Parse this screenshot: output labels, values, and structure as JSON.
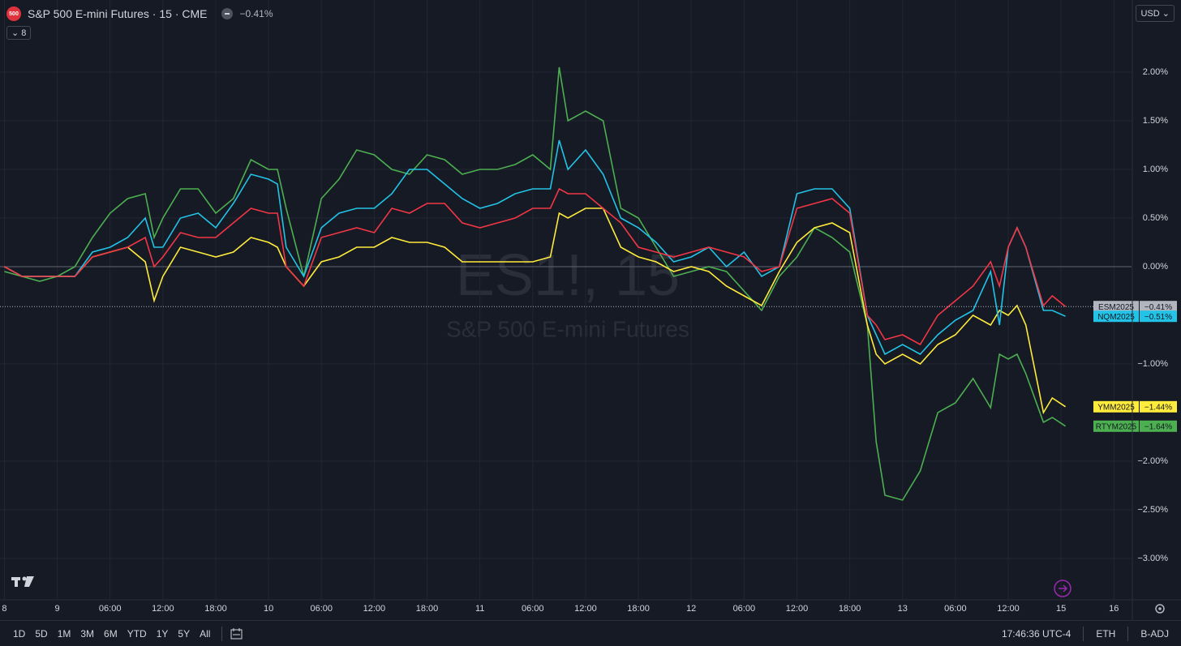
{
  "chart_data": {
    "type": "line",
    "symbol_title": "S&P 500 E-mini Futures · 15 · CME",
    "logo": "500",
    "header_change": "−0.41%",
    "indicator_count": "8",
    "currency": "USD",
    "watermark_symbol": "ES1!, 15",
    "watermark_name": "S&P 500 E-mini Futures",
    "timeframes": [
      "1D",
      "5D",
      "1M",
      "3M",
      "6M",
      "YTD",
      "1Y",
      "5Y",
      "All"
    ],
    "clock": "17:46:36 UTC-4",
    "session": "ETH",
    "adjustment": "B-ADJ",
    "grid": true,
    "xlim": [
      -0.5,
      128
    ],
    "ylim": [
      -3.425,
      2.742
    ],
    "xticks": [
      {
        "value": 0,
        "label": "8"
      },
      {
        "value": 6,
        "label": "9"
      },
      {
        "value": 12,
        "label": "06:00"
      },
      {
        "value": 18,
        "label": "12:00"
      },
      {
        "value": 24,
        "label": "18:00"
      },
      {
        "value": 30,
        "label": "10"
      },
      {
        "value": 36,
        "label": "06:00"
      },
      {
        "value": 42,
        "label": "12:00"
      },
      {
        "value": 48,
        "label": "18:00"
      },
      {
        "value": 54,
        "label": "11"
      },
      {
        "value": 60,
        "label": "06:00"
      },
      {
        "value": 66,
        "label": "12:00"
      },
      {
        "value": 72,
        "label": "18:00"
      },
      {
        "value": 78,
        "label": "12"
      },
      {
        "value": 84,
        "label": "06:00"
      },
      {
        "value": 90,
        "label": "12:00"
      },
      {
        "value": 96,
        "label": "18:00"
      },
      {
        "value": 102,
        "label": "13"
      },
      {
        "value": 108,
        "label": "06:00"
      },
      {
        "value": 114,
        "label": "12:00"
      },
      {
        "value": 120,
        "label": "15"
      },
      {
        "value": 126,
        "label": "16"
      }
    ],
    "yticks": [
      {
        "value": 2,
        "label": "2.00%"
      },
      {
        "value": 1.5,
        "label": "1.50%"
      },
      {
        "value": 1,
        "label": "1.00%"
      },
      {
        "value": 0.5,
        "label": "0.50%"
      },
      {
        "value": 0,
        "label": "0.00%"
      },
      {
        "value": -1,
        "label": "−1.00%"
      },
      {
        "value": -2,
        "label": "−2.00%"
      },
      {
        "value": -2.5,
        "label": "−2.50%"
      },
      {
        "value": -3,
        "label": "−3.00%"
      }
    ],
    "x": [
      0,
      2,
      4,
      6,
      8,
      10,
      12,
      14,
      16,
      17,
      18,
      20,
      22,
      24,
      26,
      28,
      30,
      31,
      32,
      34,
      36,
      38,
      40,
      42,
      44,
      46,
      48,
      50,
      52,
      54,
      56,
      58,
      60,
      62,
      63,
      64,
      66,
      68,
      70,
      72,
      74,
      76,
      78,
      80,
      82,
      84,
      86,
      88,
      90,
      92,
      94,
      96,
      98,
      99,
      100,
      102,
      104,
      106,
      108,
      110,
      112,
      113,
      114,
      115,
      116,
      118,
      119,
      120.5
    ],
    "series": [
      {
        "name": "ESM2025",
        "color": "#f23645",
        "badge_color": "#b2b5be",
        "last_label": "−0.41%",
        "values": [
          0,
          -0.1,
          -0.1,
          -0.1,
          -0.1,
          0.1,
          0.15,
          0.2,
          0.3,
          0,
          0.1,
          0.35,
          0.3,
          0.3,
          0.45,
          0.6,
          0.55,
          0.55,
          0,
          -0.2,
          0.3,
          0.35,
          0.4,
          0.35,
          0.6,
          0.55,
          0.65,
          0.65,
          0.45,
          0.4,
          0.45,
          0.5,
          0.6,
          0.6,
          0.8,
          0.75,
          0.75,
          0.6,
          0.45,
          0.2,
          0.15,
          0.1,
          0.15,
          0.2,
          0.15,
          0.1,
          -0.05,
          0,
          0.6,
          0.65,
          0.7,
          0.55,
          -0.5,
          -0.6,
          -0.75,
          -0.7,
          -0.8,
          -0.5,
          -0.35,
          -0.2,
          0.05,
          -0.2,
          0.2,
          0.4,
          0.2,
          -0.4,
          -0.3,
          -0.41
        ]
      },
      {
        "name": "NQM2025",
        "color": "#22c3e6",
        "badge_color": "#22c3e6",
        "last_label": "−0.51%",
        "values": [
          0,
          -0.1,
          -0.1,
          -0.1,
          -0.1,
          0.15,
          0.2,
          0.3,
          0.5,
          0.2,
          0.2,
          0.5,
          0.55,
          0.4,
          0.65,
          0.95,
          0.9,
          0.85,
          0.2,
          -0.1,
          0.4,
          0.55,
          0.6,
          0.6,
          0.75,
          1.0,
          1.0,
          0.85,
          0.7,
          0.6,
          0.65,
          0.75,
          0.8,
          0.8,
          1.3,
          1.0,
          1.2,
          0.95,
          0.5,
          0.4,
          0.25,
          0.05,
          0.1,
          0.2,
          0.0,
          0.15,
          -0.1,
          0.0,
          0.75,
          0.8,
          0.8,
          0.6,
          -0.5,
          -0.7,
          -0.9,
          -0.8,
          -0.9,
          -0.7,
          -0.55,
          -0.45,
          -0.05,
          -0.6,
          0.2,
          0.4,
          0.2,
          -0.45,
          -0.45,
          -0.51
        ]
      },
      {
        "name": "YMM2025",
        "color": "#ffeb3b",
        "badge_color": "#ffeb3b",
        "last_label": "−1.44%",
        "values": [
          0,
          -0.1,
          -0.1,
          -0.1,
          -0.1,
          0.1,
          0.15,
          0.2,
          0.05,
          -0.35,
          -0.1,
          0.2,
          0.15,
          0.1,
          0.15,
          0.3,
          0.25,
          0.2,
          0.0,
          -0.2,
          0.05,
          0.1,
          0.2,
          0.2,
          0.3,
          0.25,
          0.25,
          0.2,
          0.05,
          0.05,
          0.05,
          0.05,
          0.05,
          0.1,
          0.55,
          0.5,
          0.6,
          0.6,
          0.2,
          0.1,
          0.05,
          -0.05,
          0.0,
          -0.05,
          -0.2,
          -0.3,
          -0.4,
          -0.05,
          0.25,
          0.4,
          0.45,
          0.35,
          -0.6,
          -0.9,
          -1.0,
          -0.9,
          -1.0,
          -0.8,
          -0.7,
          -0.5,
          -0.6,
          -0.45,
          -0.5,
          -0.4,
          -0.6,
          -1.5,
          -1.35,
          -1.44
        ]
      },
      {
        "name": "RTYM2025",
        "color": "#4caf50",
        "badge_color": "#4caf50",
        "last_label": "−1.64%",
        "values": [
          -0.05,
          -0.1,
          -0.15,
          -0.1,
          0.0,
          0.3,
          0.55,
          0.7,
          0.75,
          0.3,
          0.5,
          0.8,
          0.8,
          0.55,
          0.7,
          1.1,
          1.0,
          1.0,
          0.6,
          -0.1,
          0.7,
          0.9,
          1.2,
          1.15,
          1.0,
          0.95,
          1.15,
          1.1,
          0.95,
          1.0,
          1.0,
          1.05,
          1.15,
          1.0,
          2.05,
          1.5,
          1.6,
          1.5,
          0.6,
          0.5,
          0.2,
          -0.1,
          -0.05,
          0.0,
          -0.05,
          -0.25,
          -0.45,
          -0.1,
          0.1,
          0.4,
          0.3,
          0.15,
          -0.6,
          -1.8,
          -2.35,
          -2.4,
          -2.1,
          -1.5,
          -1.4,
          -1.15,
          -1.45,
          -0.9,
          -0.95,
          -0.9,
          -1.1,
          -1.6,
          -1.55,
          -1.64
        ]
      }
    ]
  }
}
